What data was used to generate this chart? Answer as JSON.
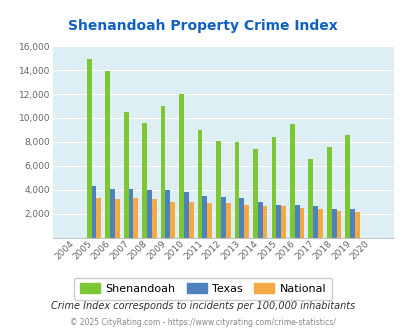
{
  "title": "Shenandoah Property Crime Index",
  "years": [
    "2004",
    "2005",
    "2006",
    "2007",
    "2008",
    "2009",
    "2010",
    "2011",
    "2012",
    "2013",
    "2014",
    "2015",
    "2016",
    "2017",
    "2018",
    "2019",
    "2020"
  ],
  "shenandoah": [
    0,
    14900,
    13900,
    10500,
    9600,
    11000,
    12000,
    9000,
    8100,
    8000,
    7400,
    8400,
    9500,
    6600,
    7600,
    8600,
    0
  ],
  "texas": [
    0,
    4300,
    4100,
    4100,
    4000,
    4000,
    3800,
    3500,
    3400,
    3300,
    3000,
    2700,
    2700,
    2600,
    2400,
    2400,
    0
  ],
  "national": [
    0,
    3300,
    3200,
    3300,
    3200,
    3000,
    3000,
    2900,
    2900,
    2700,
    2600,
    2600,
    2500,
    2400,
    2200,
    2100,
    0
  ],
  "colors": {
    "shenandoah": "#7dc832",
    "texas": "#4f81bd",
    "national": "#f4a944"
  },
  "ylim": [
    0,
    16000
  ],
  "yticks": [
    0,
    2000,
    4000,
    6000,
    8000,
    10000,
    12000,
    14000,
    16000
  ],
  "background_color": "#ddeef4",
  "grid_color": "#ffffff",
  "title_color": "#1060c0",
  "footer1": "Crime Index corresponds to incidents per 100,000 inhabitants",
  "footer2": "© 2025 CityRating.com - https://www.cityrating.com/crime-statistics/",
  "legend_labels": [
    "Shenandoah",
    "Texas",
    "National"
  ]
}
